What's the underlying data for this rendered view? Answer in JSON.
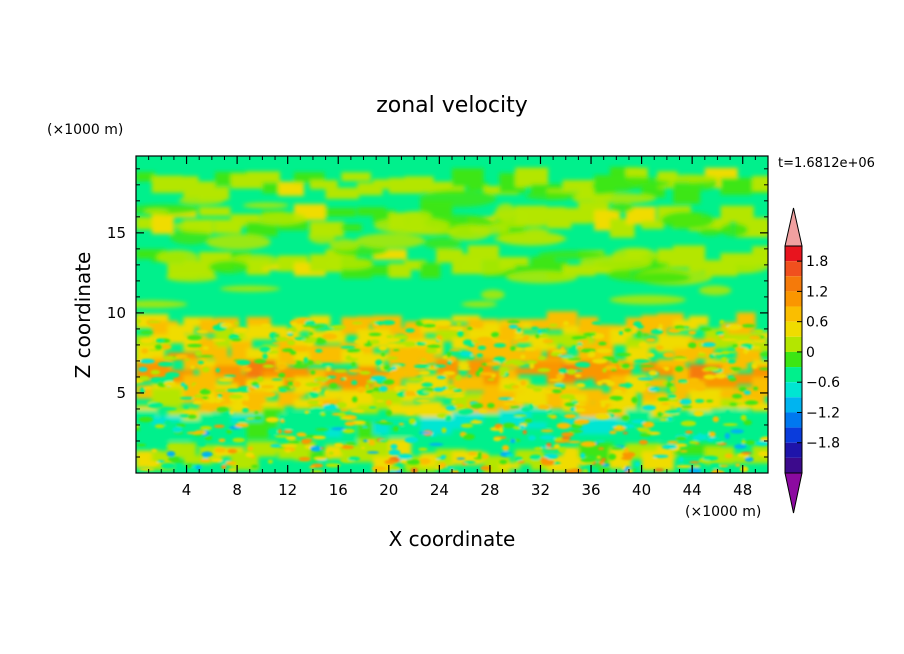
{
  "chart_data": {
    "type": "heatmap",
    "title": "zonal velocity",
    "xlabel": "X coordinate",
    "ylabel": "Z coordinate",
    "x_unit": "(×1000 m)",
    "y_unit": "(×1000 m)",
    "time_label": "t=1.6812e+06",
    "xlim": [
      0,
      50
    ],
    "ylim": [
      0,
      19.8
    ],
    "xticks": [
      "4",
      "8",
      "12",
      "16",
      "20",
      "24",
      "28",
      "32",
      "36",
      "40",
      "44",
      "48"
    ],
    "yticks": [
      "5",
      "10",
      "15"
    ],
    "colorbar": {
      "tick_labels": [
        "1.8",
        "1.2",
        "0.6",
        "0",
        "−0.6",
        "−1.2",
        "−1.8"
      ],
      "levels_top_to_bottom": [
        2.1,
        1.8,
        1.5,
        1.2,
        0.9,
        0.6,
        0.3,
        0.0,
        -0.3,
        -0.6,
        -0.9,
        -1.2,
        -1.5,
        -1.8,
        -2.1
      ],
      "colors_top_to_bottom": [
        "#e8141e",
        "#f0501e",
        "#f57a0a",
        "#fa9600",
        "#fabe00",
        "#f0dc00",
        "#b4e600",
        "#3ce614",
        "#00f08c",
        "#00e6d2",
        "#00b4f0",
        "#0078f0",
        "#0a3cdc",
        "#1e14aa",
        "#3c0a8c"
      ],
      "overflow_high_color": "#f0a0a0",
      "overflow_low_color": "#8c0aa0",
      "range": [
        -2.1,
        2.1
      ]
    },
    "base_color": "#00f08c",
    "bands": [
      {
        "z": 18.0,
        "value": 0.1
      },
      {
        "z": 15.8,
        "value": 0.1
      },
      {
        "z": 13.2,
        "value": 0.1
      },
      {
        "z": 9.1,
        "value": 0.6
      },
      {
        "z": 8.2,
        "value": 0.4
      },
      {
        "z": 7.2,
        "value": 0.7
      },
      {
        "z": 6.1,
        "value": 1.0
      },
      {
        "z": 5.0,
        "value": 0.6
      },
      {
        "z": 4.2,
        "value": 0.5
      },
      {
        "z": 3.0,
        "value": -0.5
      },
      {
        "z": 1.0,
        "value": 0.2
      }
    ]
  }
}
